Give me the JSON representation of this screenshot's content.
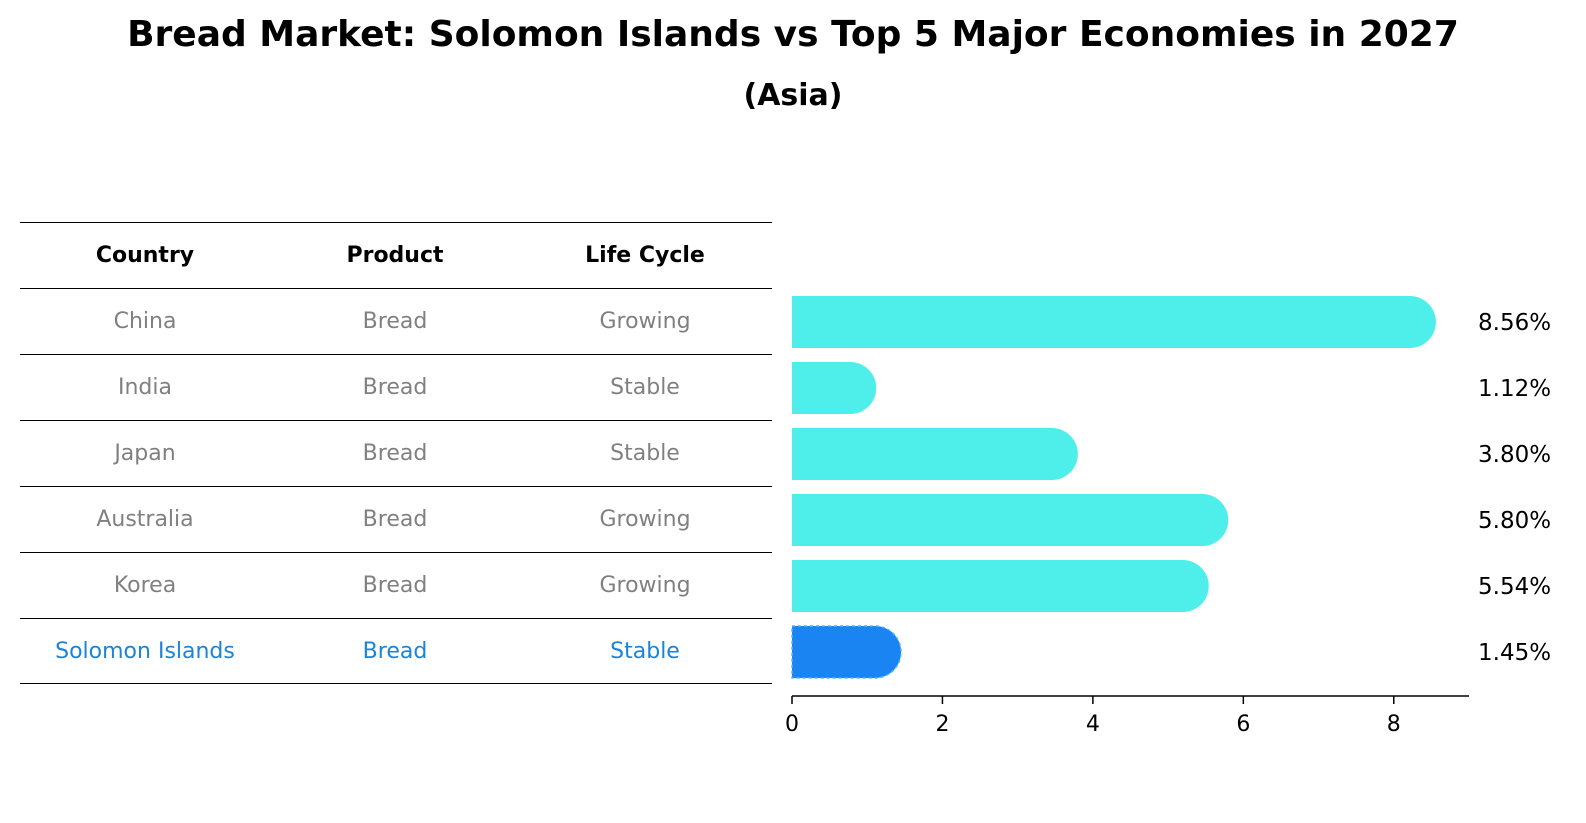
{
  "title": "Bread Market: Solomon Islands vs Top 5 Major Economies in 2027",
  "subtitle": "(Asia)",
  "table": {
    "headers": [
      "Country",
      "Product",
      "Life Cycle"
    ],
    "rows": [
      [
        "China",
        "Bread",
        "Growing"
      ],
      [
        "India",
        "Bread",
        "Stable"
      ],
      [
        "Japan",
        "Bread",
        "Stable"
      ],
      [
        "Australia",
        "Bread",
        "Growing"
      ],
      [
        "Korea",
        "Bread",
        "Growing"
      ],
      [
        "Solomon Islands",
        "Bread",
        "Stable"
      ]
    ]
  },
  "chart_data": {
    "type": "bar",
    "orientation": "horizontal",
    "categories": [
      "China",
      "India",
      "Japan",
      "Australia",
      "Korea",
      "Solomon Islands"
    ],
    "values": [
      8.56,
      1.12,
      3.8,
      5.8,
      5.54,
      1.45
    ],
    "value_labels": [
      "8.56%",
      "1.12%",
      "3.80%",
      "5.80%",
      "5.54%",
      "1.45%"
    ],
    "highlight": "Solomon Islands",
    "xlim": [
      0,
      9
    ],
    "xticks": [
      0,
      2,
      4,
      6,
      8
    ],
    "xlabel": "",
    "ylabel": "",
    "colors": {
      "default": "#4eeeea",
      "highlight": "#1a84f2"
    }
  }
}
